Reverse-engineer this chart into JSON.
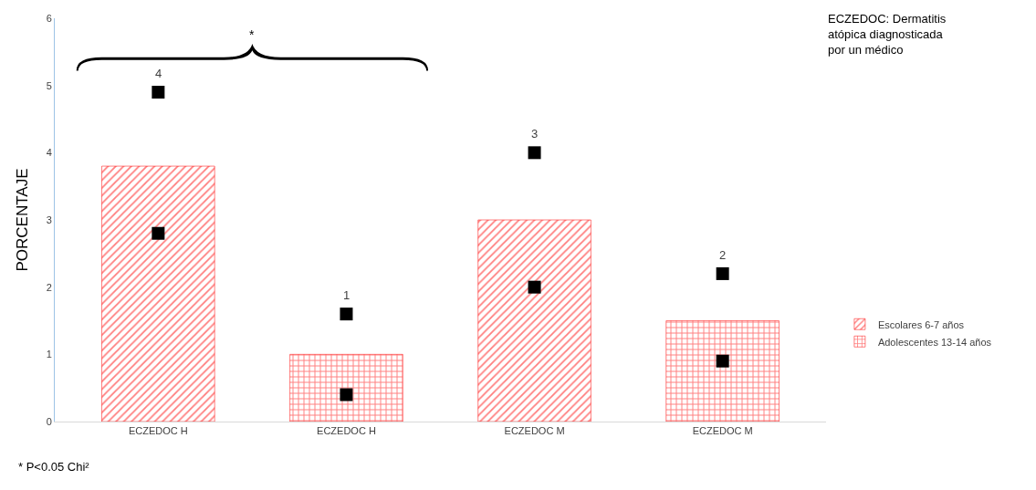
{
  "chart_data": {
    "type": "bar",
    "categories": [
      "ECZEDOC H",
      "ECZEDOC H",
      "ECZEDOC M",
      "ECZEDOC M"
    ],
    "series": [
      {
        "name": "Escolares 6-7 años",
        "color": "#ff0000",
        "values": [
          3.8,
          null,
          3.0,
          null
        ]
      },
      {
        "name": "Adolescentes 13-14 años",
        "color": "#ff0000",
        "values": [
          null,
          1.0,
          null,
          1.5
        ]
      },
      {
        "type": "scatter",
        "color": "#000000",
        "marker": "square",
        "values": [
          2.8,
          0.4,
          2.0,
          0.9
        ]
      },
      {
        "type": "scatter",
        "color": "#000000",
        "marker": "square",
        "values": [
          4.9,
          1.6,
          4.0,
          2.2
        ]
      }
    ],
    "ylabel": "PORCENTAJE",
    "ylim": [
      0,
      6
    ],
    "yticks": [
      0,
      1,
      2,
      3,
      4,
      5,
      6
    ],
    "legend": "right",
    "annotations": [
      "ECZEDOC: Dermatitis atópica diagnosticada por un médico",
      "*",
      "* P<0.05 Chi²",
      "4",
      "1",
      "3",
      "2"
    ]
  }
}
